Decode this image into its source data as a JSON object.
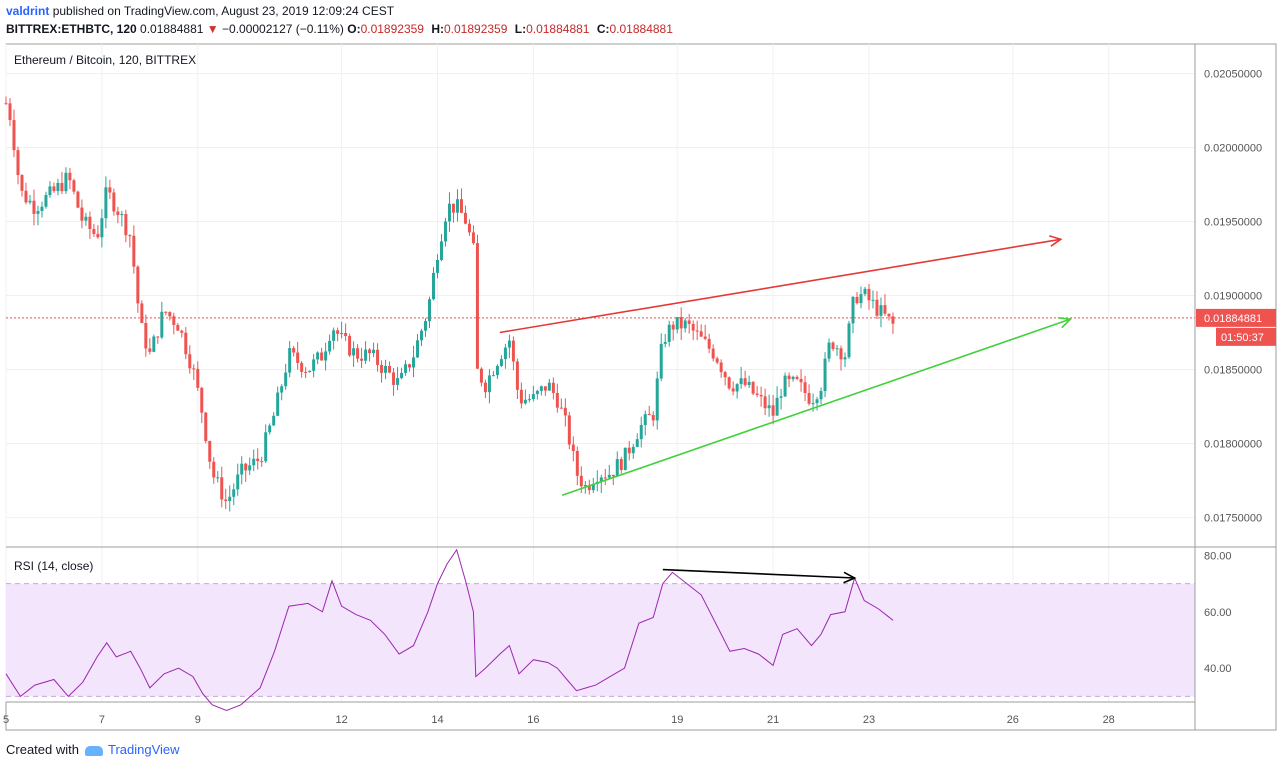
{
  "header": {
    "author": "valdrint",
    "published_text": "published on TradingView.com, August 23, 2019 12:09:24 CEST",
    "symbol": "BITTREX:ETHBTC, 120",
    "last": "0.01884881",
    "change": "−0.00002127 (−0.11%)",
    "open_label": "O:",
    "open": "0.01892359",
    "high_label": "H:",
    "high": "0.01892359",
    "low_label": "L:",
    "low": "0.01884881",
    "close_label": "C:",
    "close": "0.01884881"
  },
  "footer": {
    "created_with": "Created with",
    "brand": "TradingView"
  },
  "colors": {
    "up": "#26a69a",
    "down": "#ef5350",
    "rsi": "#9c27b0",
    "rsi_band": "#f3e5fc",
    "resistance": "#e53935",
    "support": "#43d13c",
    "divergence": "#000000",
    "price_line": "#ef5350"
  },
  "chart_data": {
    "type": "candlestick",
    "title": "Ethereum / Bitcoin, 120, BITTREX",
    "price_axis": {
      "ticks": [
        "0.02050000",
        "0.02000000",
        "0.01950000",
        "0.01900000",
        "0.01850000",
        "0.01800000",
        "0.01750000"
      ],
      "ylim": [
        0.0173,
        0.0207
      ],
      "last_price_label": "0.01884881",
      "countdown_label": "01:50:37"
    },
    "time_axis": {
      "labels": [
        "5",
        "7",
        "9",
        "12",
        "14",
        "16",
        "19",
        "21",
        "23",
        "26",
        "28"
      ],
      "label_days": [
        5,
        7,
        9,
        12,
        14,
        16,
        19,
        21,
        23,
        26,
        28
      ],
      "xlim": [
        5,
        29.8
      ]
    },
    "close_path": [
      [
        5.0,
        0.0203
      ],
      [
        5.1,
        0.0202
      ],
      [
        5.3,
        0.0197
      ],
      [
        5.6,
        0.0196
      ],
      [
        6.0,
        0.0197
      ],
      [
        6.3,
        0.0198
      ],
      [
        6.6,
        0.0195
      ],
      [
        6.9,
        0.0194
      ],
      [
        7.1,
        0.0197
      ],
      [
        7.3,
        0.0196
      ],
      [
        7.6,
        0.0194
      ],
      [
        7.8,
        0.0188
      ],
      [
        8.0,
        0.0186
      ],
      [
        8.3,
        0.0189
      ],
      [
        8.6,
        0.0188
      ],
      [
        8.9,
        0.0185
      ],
      [
        9.1,
        0.0182
      ],
      [
        9.3,
        0.0178
      ],
      [
        9.6,
        0.0176
      ],
      [
        9.9,
        0.0178
      ],
      [
        10.3,
        0.0179
      ],
      [
        10.6,
        0.0182
      ],
      [
        10.9,
        0.0186
      ],
      [
        11.3,
        0.0185
      ],
      [
        11.6,
        0.0186
      ],
      [
        11.8,
        0.0188
      ],
      [
        12.0,
        0.0187
      ],
      [
        12.3,
        0.0186
      ],
      [
        12.6,
        0.0186
      ],
      [
        12.9,
        0.0185
      ],
      [
        13.2,
        0.0184
      ],
      [
        13.5,
        0.0186
      ],
      [
        13.8,
        0.0189
      ],
      [
        14.0,
        0.0193
      ],
      [
        14.2,
        0.0196
      ],
      [
        14.4,
        0.0196
      ],
      [
        14.6,
        0.0195
      ],
      [
        14.75,
        0.0193
      ],
      [
        14.8,
        0.0185
      ],
      [
        15.0,
        0.0184
      ],
      [
        15.3,
        0.0186
      ],
      [
        15.5,
        0.0187
      ],
      [
        15.7,
        0.0183
      ],
      [
        16.0,
        0.0183
      ],
      [
        16.3,
        0.0184
      ],
      [
        16.5,
        0.0183
      ],
      [
        16.7,
        0.0181
      ],
      [
        16.9,
        0.0178
      ],
      [
        17.1,
        0.0177
      ],
      [
        17.3,
        0.0178
      ],
      [
        17.6,
        0.0178
      ],
      [
        17.9,
        0.0179
      ],
      [
        18.2,
        0.0181
      ],
      [
        18.5,
        0.0182
      ],
      [
        18.7,
        0.0187
      ],
      [
        18.9,
        0.0188
      ],
      [
        19.2,
        0.0188
      ],
      [
        19.5,
        0.0187
      ],
      [
        19.8,
        0.0186
      ],
      [
        20.1,
        0.0184
      ],
      [
        20.4,
        0.0184
      ],
      [
        20.7,
        0.0183
      ],
      [
        21.0,
        0.0182
      ],
      [
        21.2,
        0.0184
      ],
      [
        21.5,
        0.0184
      ],
      [
        21.8,
        0.0183
      ],
      [
        22.0,
        0.0184
      ],
      [
        22.2,
        0.0187
      ],
      [
        22.5,
        0.0186
      ],
      [
        22.7,
        0.019
      ],
      [
        22.9,
        0.019
      ],
      [
        23.2,
        0.0189
      ],
      [
        23.5,
        0.0188
      ]
    ],
    "trendlines": [
      {
        "name": "resistance",
        "from": [
          15.3,
          0.01875
        ],
        "to": [
          27.0,
          0.01938
        ],
        "arrow": true
      },
      {
        "name": "support",
        "from": [
          16.6,
          0.01765
        ],
        "to": [
          27.2,
          0.01884
        ],
        "arrow": true
      }
    ],
    "rsi": {
      "label": "RSI (14, close)",
      "ticks": [
        "80.00",
        "60.00",
        "40.00"
      ],
      "ylim": [
        28,
        83
      ],
      "band": [
        30,
        70
      ],
      "values": [
        [
          5.0,
          38
        ],
        [
          5.3,
          30
        ],
        [
          5.6,
          34
        ],
        [
          6.0,
          36
        ],
        [
          6.3,
          30
        ],
        [
          6.6,
          35
        ],
        [
          6.9,
          44
        ],
        [
          7.1,
          49
        ],
        [
          7.3,
          44
        ],
        [
          7.6,
          46
        ],
        [
          7.8,
          40
        ],
        [
          8.0,
          33
        ],
        [
          8.3,
          38
        ],
        [
          8.6,
          40
        ],
        [
          8.9,
          37
        ],
        [
          9.1,
          31
        ],
        [
          9.3,
          27
        ],
        [
          9.6,
          25
        ],
        [
          9.9,
          27
        ],
        [
          10.3,
          33
        ],
        [
          10.6,
          46
        ],
        [
          10.9,
          62
        ],
        [
          11.3,
          63
        ],
        [
          11.6,
          60
        ],
        [
          11.8,
          71
        ],
        [
          12.0,
          62
        ],
        [
          12.3,
          59
        ],
        [
          12.6,
          57
        ],
        [
          12.9,
          52
        ],
        [
          13.2,
          45
        ],
        [
          13.5,
          48
        ],
        [
          13.8,
          60
        ],
        [
          14.0,
          70
        ],
        [
          14.2,
          77
        ],
        [
          14.4,
          82
        ],
        [
          14.6,
          70
        ],
        [
          14.75,
          60
        ],
        [
          14.8,
          37
        ],
        [
          15.0,
          40
        ],
        [
          15.3,
          45
        ],
        [
          15.5,
          48
        ],
        [
          15.7,
          38
        ],
        [
          16.0,
          43
        ],
        [
          16.3,
          42
        ],
        [
          16.5,
          40
        ],
        [
          16.7,
          36
        ],
        [
          16.9,
          32
        ],
        [
          17.1,
          33
        ],
        [
          17.3,
          34
        ],
        [
          17.6,
          37
        ],
        [
          17.9,
          40
        ],
        [
          18.2,
          56
        ],
        [
          18.5,
          58
        ],
        [
          18.7,
          70
        ],
        [
          18.9,
          74
        ],
        [
          19.2,
          70
        ],
        [
          19.5,
          66
        ],
        [
          19.8,
          56
        ],
        [
          20.1,
          46
        ],
        [
          20.4,
          47
        ],
        [
          20.7,
          45
        ],
        [
          21.0,
          41
        ],
        [
          21.2,
          52
        ],
        [
          21.5,
          54
        ],
        [
          21.8,
          48
        ],
        [
          22.0,
          52
        ],
        [
          22.2,
          59
        ],
        [
          22.5,
          60
        ],
        [
          22.7,
          72
        ],
        [
          22.9,
          64
        ],
        [
          23.2,
          61
        ],
        [
          23.5,
          57
        ]
      ],
      "divergence": {
        "from": [
          18.7,
          75
        ],
        "to": [
          22.7,
          72
        ]
      }
    }
  }
}
